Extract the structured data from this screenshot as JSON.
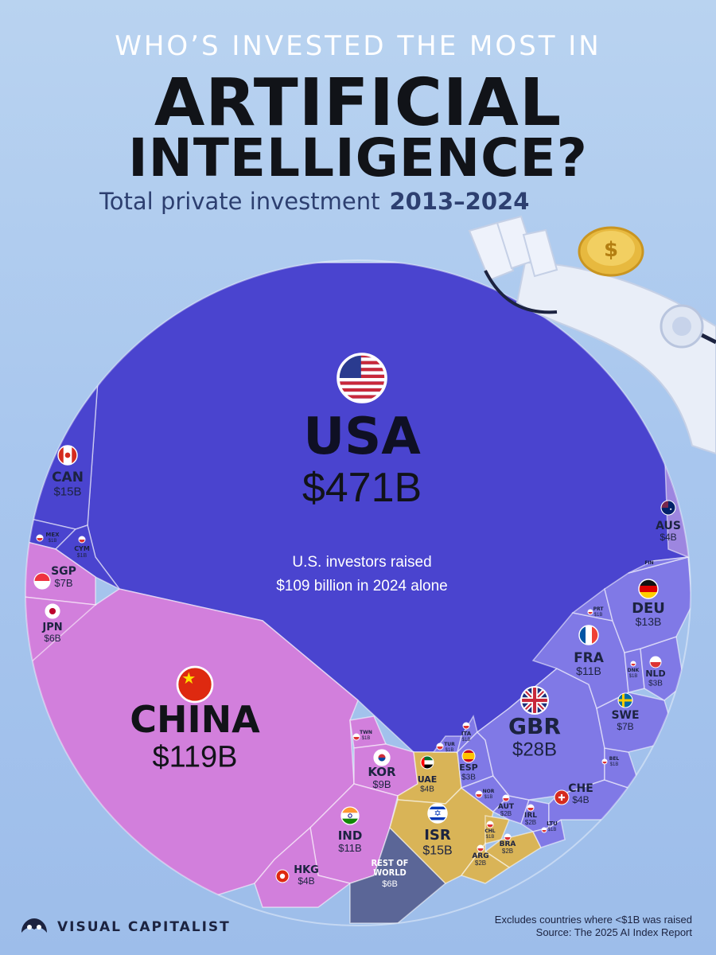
{
  "header": {
    "kicker": "WHO’S INVESTED THE MOST IN",
    "title_line1": "ARTIFICIAL",
    "title_line2": "INTELLIGENCE?",
    "subtitle": "Total private investment",
    "years": "2013–2024"
  },
  "footer": {
    "brand": "VISUAL CAPITALIST",
    "note1": "Excludes countries where <$1B was raised",
    "note2": "Source: The 2025 AI Index Report"
  },
  "colors": {
    "north_america": "#4a44cf",
    "asia": "#d27fdc",
    "europe": "#8079e6",
    "middle_east_latam": "#d9b457",
    "oceania": "#9d86e0",
    "rest_of_world": "#5b6697"
  },
  "chart_data": {
    "type": "voronoi-treemap",
    "unit": "USD",
    "annotation": "U.S. investors raised $109 billion in 2024 alone",
    "items": [
      {
        "code": "USA",
        "value_label": "$471B",
        "value": 471
      },
      {
        "code": "CHINA",
        "value_label": "$119B",
        "value": 119
      },
      {
        "code": "GBR",
        "value_label": "$28B",
        "value": 28
      },
      {
        "code": "CAN",
        "value_label": "$15B",
        "value": 15
      },
      {
        "code": "ISR",
        "value_label": "$15B",
        "value": 15
      },
      {
        "code": "DEU",
        "value_label": "$13B",
        "value": 13
      },
      {
        "code": "FRA",
        "value_label": "$11B",
        "value": 11
      },
      {
        "code": "IND",
        "value_label": "$11B",
        "value": 11
      },
      {
        "code": "KOR",
        "value_label": "$9B",
        "value": 9
      },
      {
        "code": "SGP",
        "value_label": "$7B",
        "value": 7
      },
      {
        "code": "SWE",
        "value_label": "$7B",
        "value": 7
      },
      {
        "code": "JPN",
        "value_label": "$6B",
        "value": 6
      },
      {
        "code": "REST OF WORLD",
        "value_label": "$6B",
        "value": 6
      },
      {
        "code": "AUS",
        "value_label": "$4B",
        "value": 4
      },
      {
        "code": "HKG",
        "value_label": "$4B",
        "value": 4
      },
      {
        "code": "UAE",
        "value_label": "$4B",
        "value": 4
      },
      {
        "code": "CHE",
        "value_label": "$4B",
        "value": 4
      },
      {
        "code": "ESP",
        "value_label": "$3B",
        "value": 3
      },
      {
        "code": "NLD",
        "value_label": "$3B",
        "value": 3
      },
      {
        "code": "AUT",
        "value_label": "$2B",
        "value": 2
      },
      {
        "code": "IRL",
        "value_label": "$2B",
        "value": 2
      },
      {
        "code": "BRA",
        "value_label": "$2B",
        "value": 2
      },
      {
        "code": "ARG",
        "value_label": "$2B",
        "value": 2
      },
      {
        "code": "MEX",
        "value_label": "$1B",
        "value": 1
      },
      {
        "code": "CYM",
        "value_label": "$1B",
        "value": 1
      },
      {
        "code": "TWN",
        "value_label": "$1B",
        "value": 1
      },
      {
        "code": "TUR",
        "value_label": "$1B",
        "value": 1
      },
      {
        "code": "ITA",
        "value_label": "$1B",
        "value": 1
      },
      {
        "code": "NOR",
        "value_label": "$1B",
        "value": 1
      },
      {
        "code": "PRT",
        "value_label": "$1B",
        "value": 1
      },
      {
        "code": "DNK",
        "value_label": "$1B",
        "value": 1
      },
      {
        "code": "BEL",
        "value_label": "$1B",
        "value": 1
      },
      {
        "code": "LTU",
        "value_label": "$1B",
        "value": 1
      },
      {
        "code": "CHL",
        "value_label": "$1B",
        "value": 1
      },
      {
        "code": "FIN",
        "value_label": "",
        "value": 1
      }
    ]
  }
}
